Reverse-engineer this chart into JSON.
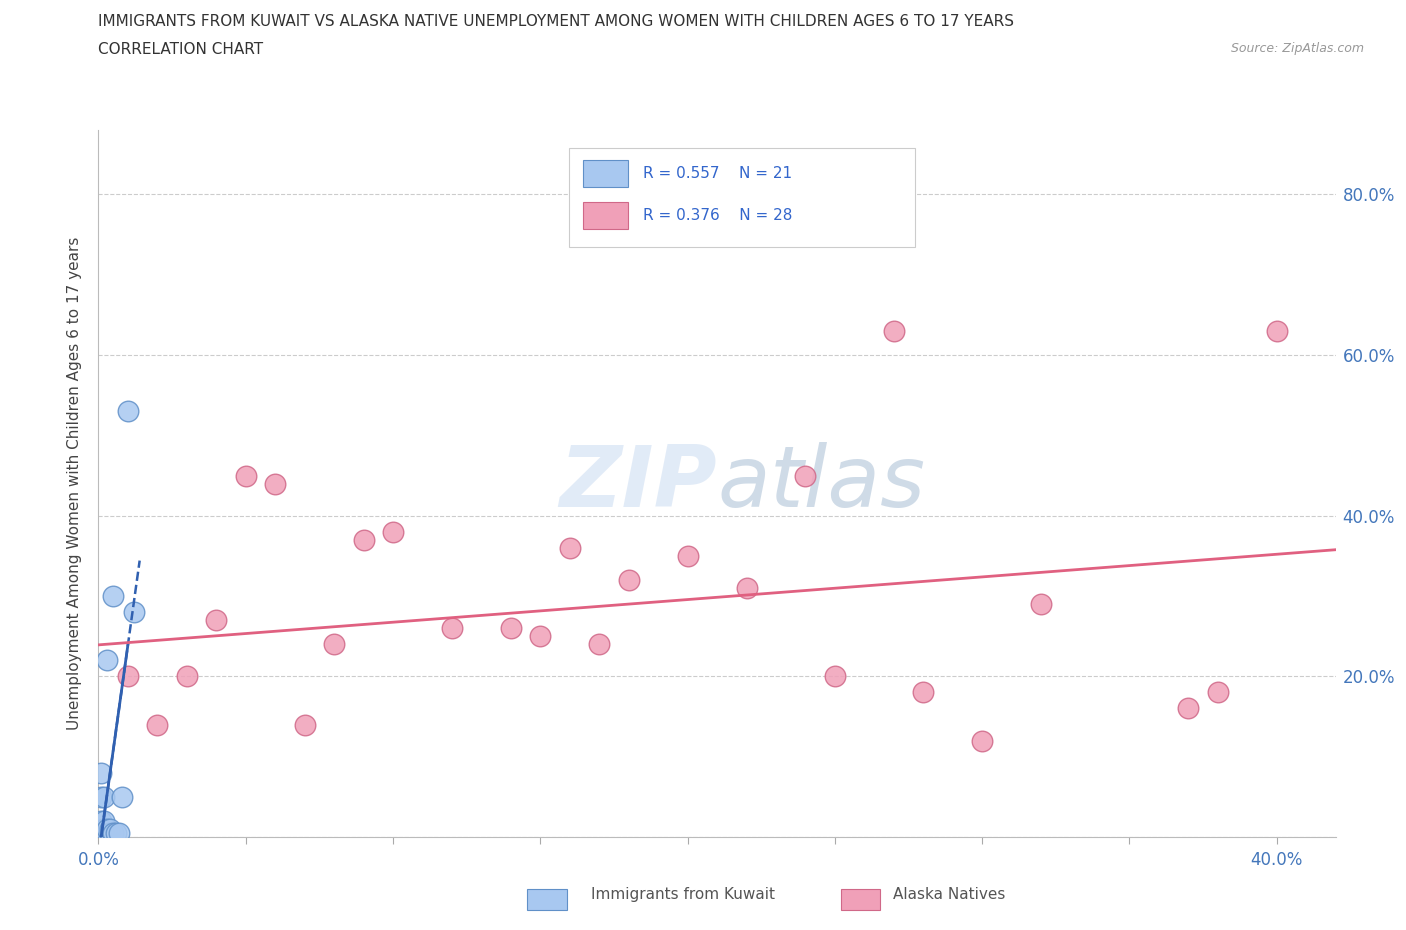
{
  "title_line1": "IMMIGRANTS FROM KUWAIT VS ALASKA NATIVE UNEMPLOYMENT AMONG WOMEN WITH CHILDREN AGES 6 TO 17 YEARS",
  "title_line2": "CORRELATION CHART",
  "source_text": "Source: ZipAtlas.com",
  "ylabel": "Unemployment Among Women with Children Ages 6 to 17 years",
  "xlim": [
    0.0,
    0.42
  ],
  "ylim": [
    0.0,
    0.88
  ],
  "watermark": "ZIPatlas",
  "kuwait_color": "#a8c8f0",
  "alaska_color": "#f0a0b8",
  "kuwait_edge": "#6090c8",
  "alaska_edge": "#d06888",
  "trendline_kuwait_color": "#3060b0",
  "trendline_alaska_color": "#e06080",
  "background_color": "#ffffff",
  "grid_color": "#cccccc",
  "kuwait_scatter_x": [
    0.001,
    0.001,
    0.001,
    0.001,
    0.001,
    0.002,
    0.002,
    0.002,
    0.002,
    0.003,
    0.003,
    0.003,
    0.004,
    0.004,
    0.005,
    0.005,
    0.006,
    0.007,
    0.008,
    0.01,
    0.012
  ],
  "kuwait_scatter_y": [
    0.005,
    0.01,
    0.02,
    0.05,
    0.08,
    0.005,
    0.01,
    0.02,
    0.05,
    0.005,
    0.01,
    0.22,
    0.005,
    0.01,
    0.005,
    0.3,
    0.005,
    0.005,
    0.05,
    0.53,
    0.28
  ],
  "alaska_scatter_x": [
    0.005,
    0.01,
    0.02,
    0.03,
    0.04,
    0.05,
    0.06,
    0.07,
    0.08,
    0.09,
    0.1,
    0.12,
    0.14,
    0.15,
    0.16,
    0.17,
    0.18,
    0.2,
    0.22,
    0.24,
    0.25,
    0.27,
    0.28,
    0.3,
    0.32,
    0.37,
    0.38,
    0.4
  ],
  "alaska_scatter_y": [
    0.005,
    0.2,
    0.14,
    0.2,
    0.27,
    0.45,
    0.44,
    0.14,
    0.24,
    0.37,
    0.38,
    0.26,
    0.26,
    0.25,
    0.36,
    0.24,
    0.32,
    0.35,
    0.31,
    0.45,
    0.2,
    0.63,
    0.18,
    0.12,
    0.29,
    0.16,
    0.18,
    0.63
  ]
}
